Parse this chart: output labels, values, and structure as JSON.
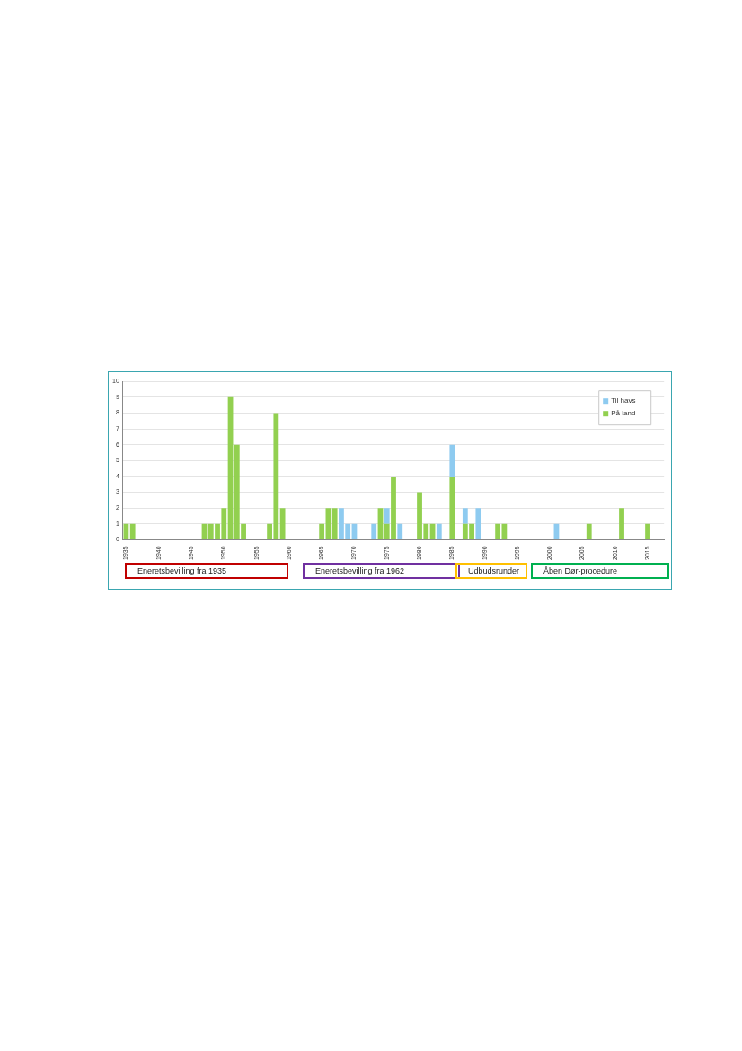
{
  "chart_data": {
    "type": "bar",
    "stacked": true,
    "categories": [
      "1935",
      null,
      null,
      null,
      null,
      "1940",
      null,
      null,
      null,
      null,
      "1945",
      null,
      null,
      null,
      null,
      "1950",
      null,
      null,
      null,
      null,
      "1955",
      null,
      null,
      null,
      null,
      "1960",
      null,
      null,
      null,
      null,
      "1965",
      null,
      null,
      null,
      null,
      "1970",
      null,
      null,
      null,
      null,
      "1975",
      null,
      null,
      null,
      null,
      "1980",
      null,
      null,
      null,
      null,
      "1985",
      null,
      null,
      null,
      null,
      "1990",
      null,
      null,
      null,
      null,
      "1995",
      null,
      null,
      null,
      null,
      "2000",
      null,
      null,
      null,
      null,
      "2005",
      null,
      null,
      null,
      null,
      "2010",
      null,
      null,
      null,
      null,
      "2015",
      null,
      null
    ],
    "series": [
      {
        "name": "På land",
        "color": "#92d050",
        "values": [
          1,
          1,
          0,
          0,
          0,
          0,
          0,
          0,
          0,
          0,
          0,
          0,
          1,
          1,
          1,
          2,
          9,
          6,
          1,
          0,
          0,
          0,
          1,
          8,
          2,
          0,
          0,
          0,
          0,
          0,
          1,
          2,
          2,
          0,
          0,
          0,
          0,
          0,
          0,
          2,
          1,
          4,
          0,
          0,
          0,
          3,
          1,
          1,
          0,
          0,
          4,
          0,
          1,
          1,
          0,
          0,
          0,
          1,
          1,
          0,
          0,
          0,
          0,
          0,
          0,
          0,
          0,
          0,
          0,
          0,
          0,
          1,
          0,
          0,
          0,
          0,
          2,
          0,
          0,
          0,
          1,
          0,
          0
        ]
      },
      {
        "name": "Til havs",
        "color": "#8ecbf0",
        "values": [
          0,
          0,
          0,
          0,
          0,
          0,
          0,
          0,
          0,
          0,
          0,
          0,
          0,
          0,
          0,
          0,
          0,
          0,
          0,
          0,
          0,
          0,
          0,
          0,
          0,
          0,
          0,
          0,
          0,
          0,
          0,
          0,
          0,
          2,
          1,
          1,
          0,
          0,
          1,
          0,
          1,
          0,
          1,
          0,
          0,
          0,
          0,
          0,
          1,
          0,
          2,
          0,
          1,
          0,
          2,
          0,
          0,
          0,
          0,
          0,
          0,
          0,
          0,
          0,
          0,
          0,
          1,
          0,
          0,
          0,
          0,
          0,
          0,
          0,
          0,
          0,
          0,
          0,
          0,
          0,
          0,
          0,
          0
        ]
      }
    ],
    "ylim": [
      0,
      10
    ],
    "yticks": [
      0,
      1,
      2,
      3,
      4,
      5,
      6,
      7,
      8,
      9,
      10
    ],
    "grid": "y",
    "legend": "top right",
    "annotations": [
      "Eneretsbevilling fra 1935",
      "Eneretsbevilling fra 1962",
      "Udbudsrunder",
      "Åben Dør-procedure"
    ]
  }
}
